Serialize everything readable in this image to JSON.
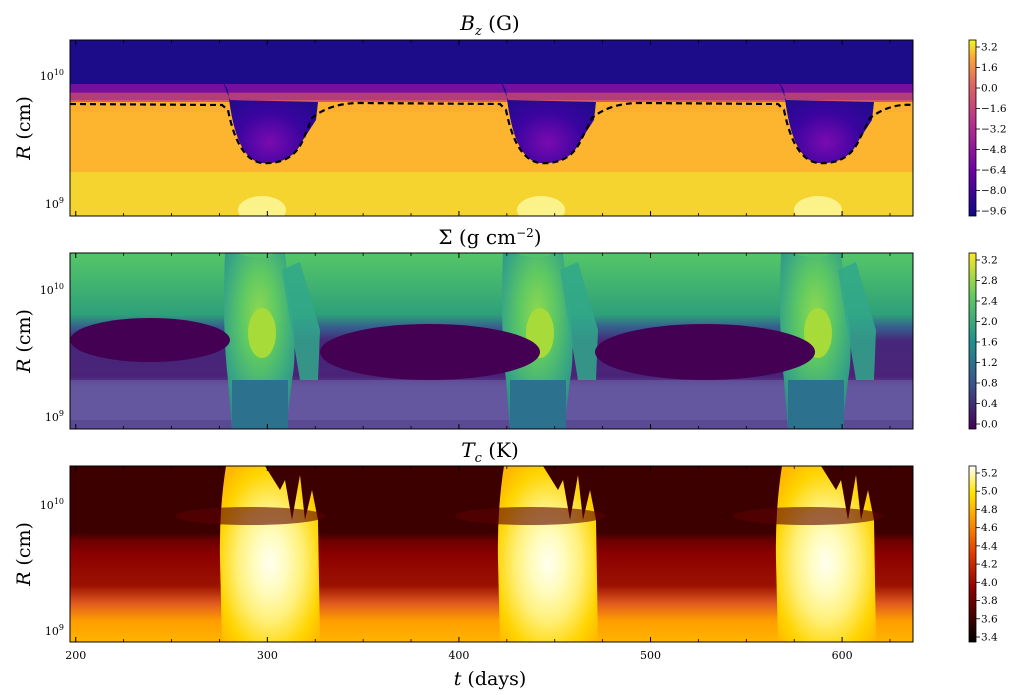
{
  "figure": {
    "x_axis": {
      "label_var": "t",
      "label_unit": " (days)",
      "ticks": [
        "200",
        "300",
        "400",
        "500",
        "600"
      ],
      "range": [
        197,
        637
      ]
    }
  },
  "chart_data": [
    {
      "type": "heatmap",
      "title": "B_z (G)",
      "title_var": "B",
      "title_sub": "z",
      "title_unit": " (G)",
      "ylabel_var": "R",
      "ylabel_unit": " (cm)",
      "y_scale": "log",
      "y_ticks": [
        "10^9",
        "10^10"
      ],
      "x_ticks": [
        200,
        300,
        400,
        500,
        600
      ],
      "xlim": [
        197,
        637
      ],
      "colormap": "plasma",
      "colorbar_ticks": [
        "3.2",
        "1.6",
        "0.0",
        "−1.6",
        "−3.2",
        "−4.8",
        "−6.4",
        "−8.0",
        "−9.6"
      ],
      "colorbar_range": [
        -9.6,
        3.2
      ],
      "colors": {
        "high": "#f5e51f",
        "mid": "#cc4778",
        "low": "#1d0c8a"
      },
      "contour_style": "dashed",
      "outburst_days": [
        278,
        421,
        566
      ]
    },
    {
      "type": "heatmap",
      "title": "Σ (g cm^-2)",
      "title_var": "Σ",
      "title_unit": " (g cm",
      "title_sup": "−2",
      "title_close": ")",
      "ylabel_var": "R",
      "ylabel_unit": " (cm)",
      "y_scale": "log",
      "y_ticks": [
        "10^9",
        "10^10"
      ],
      "x_ticks": [
        200,
        300,
        400,
        500,
        600
      ],
      "xlim": [
        197,
        637
      ],
      "colormap": "viridis",
      "colorbar_ticks": [
        "3.2",
        "2.8",
        "2.4",
        "2.0",
        "1.6",
        "1.2",
        "0.8",
        "0.4",
        "0.0"
      ],
      "colorbar_range": [
        0.0,
        3.2
      ],
      "colors": {
        "high": "#5ec962",
        "mid": "#21918c",
        "low": "#440154"
      },
      "outburst_days": [
        278,
        421,
        566
      ]
    },
    {
      "type": "heatmap",
      "title": "T_c (K)",
      "title_var": "T",
      "title_sub": "c",
      "title_unit": " (K)",
      "ylabel_var": "R",
      "ylabel_unit": " (cm)",
      "y_scale": "log",
      "y_ticks": [
        "10^9",
        "10^10"
      ],
      "x_ticks": [
        200,
        300,
        400,
        500,
        600
      ],
      "xlim": [
        197,
        637
      ],
      "colormap": "hot",
      "colorbar_ticks": [
        "5.2",
        "5.0",
        "4.8",
        "4.6",
        "4.4",
        "4.2",
        "4.0",
        "3.8",
        "3.6",
        "3.4"
      ],
      "colorbar_range": [
        3.4,
        5.2
      ],
      "colors": {
        "high": "#fffbe6",
        "mid": "#e03b00",
        "low": "#2a0000"
      },
      "outburst_days": [
        278,
        421,
        566
      ]
    }
  ]
}
